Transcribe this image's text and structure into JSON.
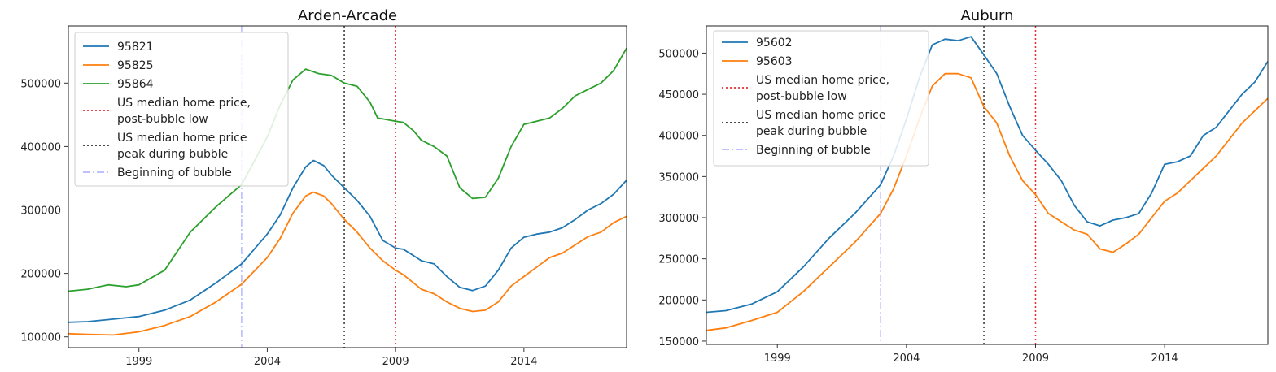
{
  "chart_data": [
    {
      "type": "line",
      "title": "Arden-Arcade",
      "xlabel": "",
      "ylabel": "",
      "xlim": [
        1996.25,
        2018.0
      ],
      "ylim": [
        83000,
        590000
      ],
      "xticks": [
        1999,
        2004,
        2009,
        2014
      ],
      "yticks": [
        100000,
        200000,
        300000,
        400000,
        500000
      ],
      "grid": false,
      "legend_position": "upper-left",
      "series": [
        {
          "name": "95821",
          "color": "#1f77b4",
          "x": [
            1996.25,
            1997.0,
            1998.0,
            1999.0,
            2000.0,
            2001.0,
            2002.0,
            2003.0,
            2004.0,
            2004.5,
            2005.0,
            2005.5,
            2005.8,
            2006.2,
            2006.5,
            2007.0,
            2007.5,
            2008.0,
            2008.5,
            2009.0,
            2009.3,
            2009.7,
            2010.0,
            2010.5,
            2011.0,
            2011.5,
            2012.0,
            2012.5,
            2013.0,
            2013.5,
            2014.0,
            2014.5,
            2015.0,
            2015.5,
            2016.0,
            2016.5,
            2017.0,
            2017.5,
            2018.0
          ],
          "y": [
            123000,
            124000,
            128000,
            132000,
            142000,
            158000,
            185000,
            215000,
            262000,
            292000,
            335000,
            368000,
            378000,
            370000,
            355000,
            335000,
            315000,
            290000,
            252000,
            240000,
            238000,
            228000,
            220000,
            215000,
            195000,
            178000,
            173000,
            180000,
            205000,
            240000,
            257000,
            262000,
            265000,
            272000,
            285000,
            300000,
            310000,
            325000,
            347000
          ]
        },
        {
          "name": "95825",
          "color": "#ff7f0e",
          "x": [
            1996.25,
            1997.0,
            1998.0,
            1999.0,
            2000.0,
            2001.0,
            2002.0,
            2003.0,
            2004.0,
            2004.5,
            2005.0,
            2005.5,
            2005.8,
            2006.2,
            2006.5,
            2007.0,
            2007.5,
            2008.0,
            2008.5,
            2009.0,
            2009.3,
            2009.7,
            2010.0,
            2010.5,
            2011.0,
            2011.5,
            2012.0,
            2012.5,
            2013.0,
            2013.5,
            2014.0,
            2014.5,
            2015.0,
            2015.5,
            2016.0,
            2016.5,
            2017.0,
            2017.5,
            2018.0
          ],
          "y": [
            105000,
            104000,
            103000,
            108000,
            118000,
            132000,
            155000,
            183000,
            225000,
            255000,
            295000,
            322000,
            328000,
            322000,
            310000,
            285000,
            265000,
            240000,
            220000,
            205000,
            198000,
            185000,
            175000,
            168000,
            155000,
            145000,
            140000,
            142000,
            155000,
            180000,
            195000,
            210000,
            225000,
            232000,
            245000,
            258000,
            265000,
            280000,
            290000
          ]
        },
        {
          "name": "95864",
          "color": "#2ca02c",
          "x": [
            1996.25,
            1997.0,
            1997.8,
            1998.5,
            1999.0,
            2000.0,
            2001.0,
            2002.0,
            2003.0,
            2004.0,
            2004.5,
            2005.0,
            2005.5,
            2006.0,
            2006.5,
            2007.0,
            2007.5,
            2008.0,
            2008.3,
            2009.0,
            2009.3,
            2009.7,
            2010.0,
            2010.5,
            2011.0,
            2011.5,
            2012.0,
            2012.5,
            2013.0,
            2013.5,
            2014.0,
            2014.5,
            2015.0,
            2015.5,
            2016.0,
            2016.5,
            2017.0,
            2017.5,
            2018.0
          ],
          "y": [
            172000,
            175000,
            182000,
            179000,
            182000,
            205000,
            265000,
            305000,
            340000,
            415000,
            465000,
            505000,
            522000,
            515000,
            512000,
            500000,
            495000,
            470000,
            445000,
            440000,
            438000,
            425000,
            410000,
            400000,
            385000,
            335000,
            318000,
            320000,
            350000,
            400000,
            435000,
            440000,
            445000,
            460000,
            480000,
            490000,
            500000,
            520000,
            555000
          ]
        }
      ],
      "vlines": [
        {
          "x": 2003.0,
          "label": "Beginning of bubble",
          "color": "#b8b8ff",
          "style": "dashdot"
        },
        {
          "x": 2007.0,
          "label": "US median home price peak during bubble",
          "color": "#333333",
          "style": "dotted"
        },
        {
          "x": 2009.0,
          "label": "US median home price, post-bubble low",
          "color": "#e83030",
          "style": "dotted"
        }
      ],
      "legend": [
        {
          "kind": "line",
          "color": "#1f77b4",
          "style": "solid",
          "lines": [
            "95821"
          ]
        },
        {
          "kind": "line",
          "color": "#ff7f0e",
          "style": "solid",
          "lines": [
            "95825"
          ]
        },
        {
          "kind": "line",
          "color": "#2ca02c",
          "style": "solid",
          "lines": [
            "95864"
          ]
        },
        {
          "kind": "line",
          "color": "#e83030",
          "style": "dotted",
          "lines": [
            "US median home price,",
            "post-bubble low"
          ]
        },
        {
          "kind": "line",
          "color": "#333333",
          "style": "dotted",
          "lines": [
            "US median home price",
            "peak during bubble"
          ]
        },
        {
          "kind": "line",
          "color": "#b8b8ff",
          "style": "dashdot",
          "lines": [
            "Beginning of bubble"
          ]
        }
      ]
    },
    {
      "type": "line",
      "title": "Auburn",
      "xlabel": "",
      "ylabel": "",
      "xlim": [
        1996.25,
        2018.0
      ],
      "ylim": [
        146000,
        533000
      ],
      "xticks": [
        1999,
        2004,
        2009,
        2014
      ],
      "yticks": [
        150000,
        200000,
        250000,
        300000,
        350000,
        400000,
        450000,
        500000
      ],
      "grid": false,
      "legend_position": "upper-left",
      "series": [
        {
          "name": "95602",
          "color": "#1f77b4",
          "x": [
            1996.25,
            1997.0,
            1998.0,
            1999.0,
            2000.0,
            2001.0,
            2002.0,
            2003.0,
            2003.5,
            2004.0,
            2004.5,
            2005.0,
            2005.5,
            2006.0,
            2006.5,
            2007.0,
            2007.5,
            2008.0,
            2008.5,
            2009.0,
            2009.5,
            2010.0,
            2010.5,
            2011.0,
            2011.5,
            2012.0,
            2012.5,
            2013.0,
            2013.5,
            2014.0,
            2014.5,
            2015.0,
            2015.5,
            2016.0,
            2016.5,
            2017.0,
            2017.5,
            2018.0
          ],
          "y": [
            185000,
            187000,
            195000,
            210000,
            240000,
            275000,
            305000,
            340000,
            375000,
            420000,
            470000,
            510000,
            517000,
            515000,
            520000,
            498000,
            475000,
            435000,
            400000,
            382000,
            365000,
            345000,
            315000,
            295000,
            290000,
            297000,
            300000,
            305000,
            330000,
            365000,
            368000,
            375000,
            400000,
            410000,
            430000,
            450000,
            465000,
            490000
          ]
        },
        {
          "name": "95603",
          "color": "#ff7f0e",
          "x": [
            1996.25,
            1997.0,
            1998.0,
            1999.0,
            2000.0,
            2001.0,
            2002.0,
            2003.0,
            2003.5,
            2004.0,
            2004.5,
            2005.0,
            2005.5,
            2006.0,
            2006.5,
            2007.0,
            2007.5,
            2008.0,
            2008.5,
            2009.0,
            2009.5,
            2010.0,
            2010.5,
            2011.0,
            2011.5,
            2012.0,
            2012.5,
            2013.0,
            2013.5,
            2014.0,
            2014.5,
            2015.0,
            2015.5,
            2016.0,
            2016.5,
            2017.0,
            2017.5,
            2018.0
          ],
          "y": [
            163000,
            166000,
            175000,
            185000,
            210000,
            240000,
            270000,
            305000,
            335000,
            375000,
            420000,
            460000,
            475000,
            475000,
            470000,
            435000,
            415000,
            375000,
            345000,
            328000,
            305000,
            295000,
            285000,
            280000,
            262000,
            258000,
            268000,
            280000,
            300000,
            320000,
            330000,
            345000,
            360000,
            375000,
            395000,
            415000,
            430000,
            445000
          ]
        }
      ],
      "vlines": [
        {
          "x": 2003.0,
          "label": "Beginning of bubble",
          "color": "#b8b8ff",
          "style": "dashdot"
        },
        {
          "x": 2007.0,
          "label": "US median home price peak during bubble",
          "color": "#333333",
          "style": "dotted"
        },
        {
          "x": 2009.0,
          "label": "US median home price, post-bubble low",
          "color": "#e83030",
          "style": "dotted"
        }
      ],
      "legend": [
        {
          "kind": "line",
          "color": "#1f77b4",
          "style": "solid",
          "lines": [
            "95602"
          ]
        },
        {
          "kind": "line",
          "color": "#ff7f0e",
          "style": "solid",
          "lines": [
            "95603"
          ]
        },
        {
          "kind": "line",
          "color": "#e83030",
          "style": "dotted",
          "lines": [
            "US median home price,",
            "post-bubble low"
          ]
        },
        {
          "kind": "line",
          "color": "#333333",
          "style": "dotted",
          "lines": [
            "US median home price",
            "peak during bubble"
          ]
        },
        {
          "kind": "line",
          "color": "#b8b8ff",
          "style": "dashdot",
          "lines": [
            "Beginning of bubble"
          ]
        }
      ]
    }
  ]
}
